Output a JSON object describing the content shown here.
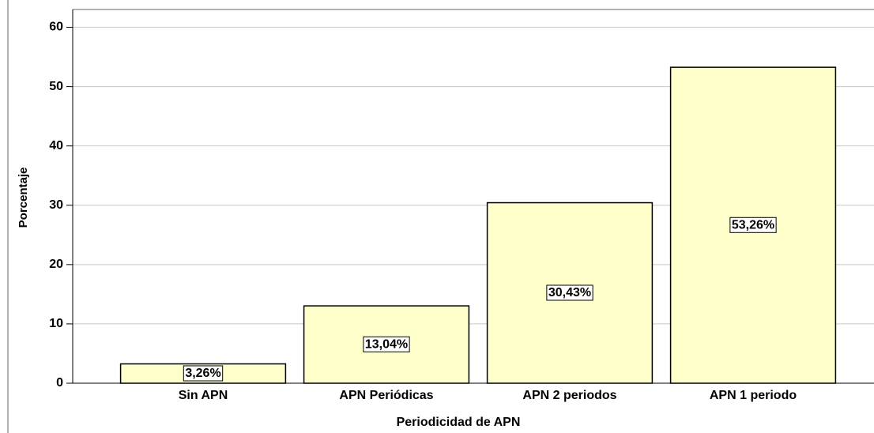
{
  "chart_data": {
    "type": "bar",
    "x_label": "Periodicidad de APN",
    "y_label": "Porcentaje",
    "categories": [
      "Sin APN",
      "APN Periódicas",
      "APN 2 periodos",
      "APN 1 periodo"
    ],
    "values": [
      3.26,
      13.04,
      30.43,
      53.26
    ],
    "value_labels": [
      "3,26%",
      "13,04%",
      "30,43%",
      "53,26%"
    ],
    "color": "#ffffcc",
    "ylim": [
      0,
      63
    ],
    "yticks": [
      0,
      10,
      20,
      30,
      40,
      50,
      60
    ],
    "grid": true
  }
}
